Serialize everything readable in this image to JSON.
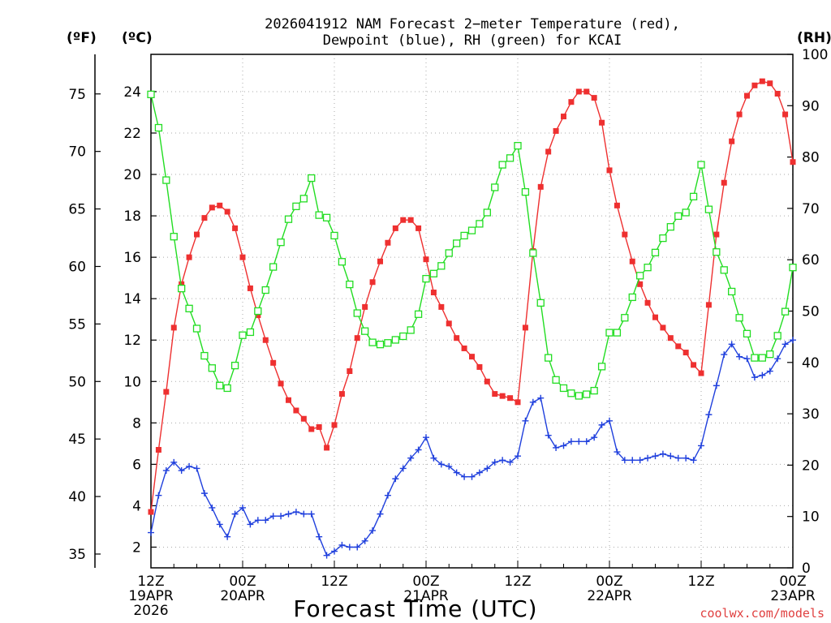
{
  "title_line1": "2026041912 NAM Forecast 2−meter Temperature (red),",
  "title_line2": "Dewpoint (blue), RH (green) for KCAI",
  "unit_f": "(ºF)",
  "unit_c": "(ºC)",
  "unit_rh": "(RH)",
  "x_title": "Forecast Time (UTC)",
  "credit": "coolwx.com/models",
  "colors": {
    "temp": "#ee3030",
    "dewpoint": "#2040dd",
    "rh": "#22dd22",
    "grid": "#aaaaaa"
  },
  "chart_data": {
    "type": "line",
    "x_unit": "forecast hour from 2026-04-19 12Z",
    "x_ticks": [
      {
        "hour": 0,
        "lines": [
          "12Z",
          "19APR",
          "2026"
        ]
      },
      {
        "hour": 12,
        "lines": [
          "00Z",
          "20APR"
        ]
      },
      {
        "hour": 24,
        "lines": [
          "12Z"
        ]
      },
      {
        "hour": 36,
        "lines": [
          "00Z",
          "21APR"
        ]
      },
      {
        "hour": 48,
        "lines": [
          "12Z"
        ]
      },
      {
        "hour": 60,
        "lines": [
          "00Z",
          "22APR"
        ]
      },
      {
        "hour": 72,
        "lines": [
          "12Z"
        ]
      },
      {
        "hour": 84,
        "lines": [
          "00Z",
          "23APR"
        ]
      }
    ],
    "xlim": [
      0,
      84
    ],
    "y_left_celsius": {
      "ylim": [
        1.0,
        25.8
      ],
      "ticks": [
        2,
        4,
        6,
        8,
        10,
        12,
        14,
        16,
        18,
        20,
        22,
        24
      ]
    },
    "y_left_fahrenheit": {
      "ticks": [
        35,
        40,
        45,
        50,
        55,
        60,
        65,
        70,
        75
      ]
    },
    "y_right_rh": {
      "ylim": [
        0,
        100
      ],
      "ticks": [
        0,
        10,
        20,
        30,
        40,
        50,
        60,
        70,
        80,
        90,
        100
      ]
    },
    "grid": true,
    "series": [
      {
        "name": "Temperature",
        "axis": "celsius",
        "marker": "filled-square",
        "values": [
          [
            0,
            3.7
          ],
          [
            1,
            6.7
          ],
          [
            2,
            9.5
          ],
          [
            3,
            12.6
          ],
          [
            4,
            14.7
          ],
          [
            5,
            16.0
          ],
          [
            6,
            17.1
          ],
          [
            7,
            17.9
          ],
          [
            8,
            18.4
          ],
          [
            9,
            18.5
          ],
          [
            10,
            18.2
          ],
          [
            11,
            17.4
          ],
          [
            12,
            16.0
          ],
          [
            13,
            14.5
          ],
          [
            14,
            13.2
          ],
          [
            15,
            12.0
          ],
          [
            16,
            10.9
          ],
          [
            17,
            9.9
          ],
          [
            18,
            9.1
          ],
          [
            19,
            8.6
          ],
          [
            20,
            8.2
          ],
          [
            21,
            7.7
          ],
          [
            22,
            7.8
          ],
          [
            23,
            6.8
          ],
          [
            24,
            7.9
          ],
          [
            25,
            9.4
          ],
          [
            26,
            10.5
          ],
          [
            27,
            12.1
          ],
          [
            28,
            13.6
          ],
          [
            29,
            14.8
          ],
          [
            30,
            15.8
          ],
          [
            31,
            16.7
          ],
          [
            32,
            17.4
          ],
          [
            33,
            17.8
          ],
          [
            34,
            17.8
          ],
          [
            35,
            17.4
          ],
          [
            36,
            15.9
          ],
          [
            37,
            14.3
          ],
          [
            38,
            13.6
          ],
          [
            39,
            12.8
          ],
          [
            40,
            12.1
          ],
          [
            41,
            11.6
          ],
          [
            42,
            11.2
          ],
          [
            43,
            10.7
          ],
          [
            44,
            10.0
          ],
          [
            45,
            9.4
          ],
          [
            46,
            9.3
          ],
          [
            47,
            9.2
          ],
          [
            48,
            9.0
          ],
          [
            49,
            12.6
          ],
          [
            50,
            16.3
          ],
          [
            51,
            19.4
          ],
          [
            52,
            21.1
          ],
          [
            53,
            22.1
          ],
          [
            54,
            22.8
          ],
          [
            55,
            23.5
          ],
          [
            56,
            24.0
          ],
          [
            57,
            24.0
          ],
          [
            58,
            23.7
          ],
          [
            59,
            22.5
          ],
          [
            60,
            20.2
          ],
          [
            61,
            18.5
          ],
          [
            62,
            17.1
          ],
          [
            63,
            15.8
          ],
          [
            64,
            14.7
          ],
          [
            65,
            13.8
          ],
          [
            66,
            13.1
          ],
          [
            67,
            12.6
          ],
          [
            68,
            12.1
          ],
          [
            69,
            11.7
          ],
          [
            70,
            11.4
          ],
          [
            71,
            10.8
          ],
          [
            72,
            10.4
          ],
          [
            73,
            13.7
          ],
          [
            74,
            17.1
          ],
          [
            75,
            19.6
          ],
          [
            76,
            21.6
          ],
          [
            77,
            22.9
          ],
          [
            78,
            23.8
          ],
          [
            79,
            24.3
          ],
          [
            80,
            24.5
          ],
          [
            81,
            24.4
          ],
          [
            82,
            23.9
          ],
          [
            83,
            22.9
          ],
          [
            84,
            20.6
          ]
        ]
      },
      {
        "name": "Dewpoint",
        "axis": "celsius",
        "marker": "plus",
        "values": [
          [
            0,
            2.7
          ],
          [
            1,
            4.5
          ],
          [
            2,
            5.7
          ],
          [
            3,
            6.1
          ],
          [
            4,
            5.7
          ],
          [
            5,
            5.9
          ],
          [
            6,
            5.8
          ],
          [
            7,
            4.6
          ],
          [
            8,
            3.9
          ],
          [
            9,
            3.1
          ],
          [
            10,
            2.5
          ],
          [
            11,
            3.6
          ],
          [
            12,
            3.9
          ],
          [
            13,
            3.1
          ],
          [
            14,
            3.3
          ],
          [
            15,
            3.3
          ],
          [
            16,
            3.5
          ],
          [
            17,
            3.5
          ],
          [
            18,
            3.6
          ],
          [
            19,
            3.7
          ],
          [
            20,
            3.6
          ],
          [
            21,
            3.6
          ],
          [
            22,
            2.5
          ],
          [
            23,
            1.6
          ],
          [
            24,
            1.8
          ],
          [
            25,
            2.1
          ],
          [
            26,
            2.0
          ],
          [
            27,
            2.0
          ],
          [
            28,
            2.3
          ],
          [
            29,
            2.8
          ],
          [
            30,
            3.6
          ],
          [
            31,
            4.5
          ],
          [
            32,
            5.3
          ],
          [
            33,
            5.8
          ],
          [
            34,
            6.3
          ],
          [
            35,
            6.7
          ],
          [
            36,
            7.3
          ],
          [
            37,
            6.3
          ],
          [
            38,
            6.0
          ],
          [
            39,
            5.9
          ],
          [
            40,
            5.6
          ],
          [
            41,
            5.4
          ],
          [
            42,
            5.4
          ],
          [
            43,
            5.6
          ],
          [
            44,
            5.8
          ],
          [
            45,
            6.1
          ],
          [
            46,
            6.2
          ],
          [
            47,
            6.1
          ],
          [
            48,
            6.4
          ],
          [
            49,
            8.1
          ],
          [
            50,
            9.0
          ],
          [
            51,
            9.2
          ],
          [
            52,
            7.4
          ],
          [
            53,
            6.8
          ],
          [
            54,
            6.9
          ],
          [
            55,
            7.1
          ],
          [
            56,
            7.1
          ],
          [
            57,
            7.1
          ],
          [
            58,
            7.3
          ],
          [
            59,
            7.9
          ],
          [
            60,
            8.1
          ],
          [
            61,
            6.6
          ],
          [
            62,
            6.2
          ],
          [
            63,
            6.2
          ],
          [
            64,
            6.2
          ],
          [
            65,
            6.3
          ],
          [
            66,
            6.4
          ],
          [
            67,
            6.5
          ],
          [
            68,
            6.4
          ],
          [
            69,
            6.3
          ],
          [
            70,
            6.3
          ],
          [
            71,
            6.2
          ],
          [
            72,
            6.9
          ],
          [
            73,
            8.4
          ],
          [
            74,
            9.8
          ],
          [
            75,
            11.3
          ],
          [
            76,
            11.8
          ],
          [
            77,
            11.2
          ],
          [
            78,
            11.1
          ],
          [
            79,
            10.2
          ],
          [
            80,
            10.3
          ],
          [
            81,
            10.5
          ],
          [
            82,
            11.1
          ],
          [
            83,
            11.8
          ],
          [
            84,
            12.0
          ]
        ]
      },
      {
        "name": "RH",
        "axis": "rh",
        "marker": "open-square",
        "values": [
          [
            0,
            92.2
          ],
          [
            1,
            85.7
          ],
          [
            2,
            75.5
          ],
          [
            3,
            64.5
          ],
          [
            4,
            54.4
          ],
          [
            5,
            50.5
          ],
          [
            6,
            46.6
          ],
          [
            7,
            41.3
          ],
          [
            8,
            38.9
          ],
          [
            9,
            35.5
          ],
          [
            10,
            35.0
          ],
          [
            11,
            39.4
          ],
          [
            12,
            45.3
          ],
          [
            13,
            45.9
          ],
          [
            14,
            50.0
          ],
          [
            15,
            54.1
          ],
          [
            16,
            58.6
          ],
          [
            17,
            63.4
          ],
          [
            18,
            67.9
          ],
          [
            19,
            70.4
          ],
          [
            20,
            71.9
          ],
          [
            21,
            75.9
          ],
          [
            22,
            68.7
          ],
          [
            23,
            68.2
          ],
          [
            24,
            64.7
          ],
          [
            25,
            59.6
          ],
          [
            26,
            55.2
          ],
          [
            27,
            49.6
          ],
          [
            28,
            46.1
          ],
          [
            29,
            43.9
          ],
          [
            30,
            43.5
          ],
          [
            31,
            43.8
          ],
          [
            32,
            44.4
          ],
          [
            33,
            45.1
          ],
          [
            34,
            46.3
          ],
          [
            35,
            49.4
          ],
          [
            36,
            56.3
          ],
          [
            37,
            57.3
          ],
          [
            38,
            58.8
          ],
          [
            39,
            61.3
          ],
          [
            40,
            63.2
          ],
          [
            41,
            64.7
          ],
          [
            42,
            65.7
          ],
          [
            43,
            67.0
          ],
          [
            44,
            69.2
          ],
          [
            45,
            74.1
          ],
          [
            46,
            78.5
          ],
          [
            47,
            79.8
          ],
          [
            48,
            82.2
          ],
          [
            49,
            73.2
          ],
          [
            50,
            61.3
          ],
          [
            51,
            51.6
          ],
          [
            52,
            40.9
          ],
          [
            53,
            36.6
          ],
          [
            54,
            35.0
          ],
          [
            55,
            34.0
          ],
          [
            56,
            33.5
          ],
          [
            57,
            33.8
          ],
          [
            58,
            34.5
          ],
          [
            59,
            39.2
          ],
          [
            60,
            45.8
          ],
          [
            61,
            45.8
          ],
          [
            62,
            48.7
          ],
          [
            63,
            52.7
          ],
          [
            64,
            56.9
          ],
          [
            65,
            58.5
          ],
          [
            66,
            61.4
          ],
          [
            67,
            64.2
          ],
          [
            68,
            66.4
          ],
          [
            69,
            68.5
          ],
          [
            70,
            69.2
          ],
          [
            71,
            72.3
          ],
          [
            72,
            78.5
          ],
          [
            73,
            69.8
          ],
          [
            74,
            61.5
          ],
          [
            75,
            58.0
          ],
          [
            76,
            53.8
          ],
          [
            77,
            48.7
          ],
          [
            78,
            45.6
          ],
          [
            79,
            40.9
          ],
          [
            80,
            40.9
          ],
          [
            81,
            41.6
          ],
          [
            82,
            45.2
          ],
          [
            83,
            49.9
          ],
          [
            84,
            58.5
          ]
        ]
      }
    ]
  }
}
